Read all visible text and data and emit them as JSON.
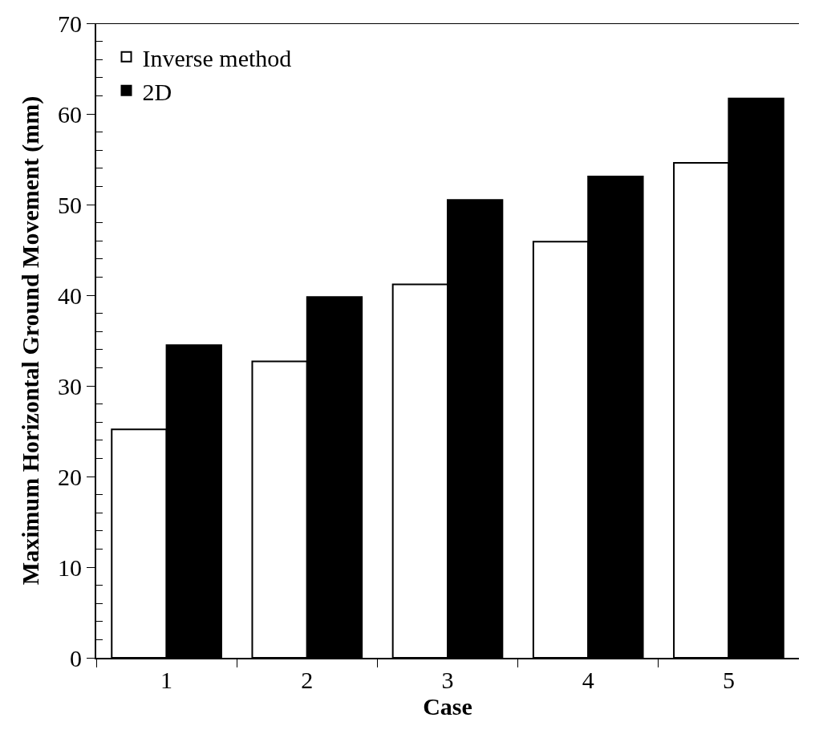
{
  "chart_data": {
    "type": "bar",
    "xlabel": "Case",
    "ylabel": "Maximum Horizontal Ground Movement (mm)",
    "categories": [
      "1",
      "2",
      "3",
      "4",
      "5"
    ],
    "series": [
      {
        "name": "Inverse method",
        "color": "#ffffff",
        "values": [
          25.2,
          32.7,
          41.2,
          45.9,
          54.6
        ]
      },
      {
        "name": "2D",
        "color": "#000000",
        "values": [
          34.5,
          39.8,
          50.5,
          53.1,
          61.7
        ]
      }
    ],
    "ylim": [
      0,
      70
    ],
    "yticks": [
      0,
      {
        "value": 2,
        "label": null
      },
      {
        "value": 4,
        "label": null
      },
      {
        "value": 6,
        "label": null
      },
      {
        "value": 8,
        "label": null
      },
      10,
      {
        "value": 12,
        "label": null
      },
      {
        "value": 14,
        "label": null
      },
      {
        "value": 16,
        "label": null
      },
      {
        "value": 18,
        "label": null
      },
      20,
      {
        "value": 22,
        "label": null
      },
      {
        "value": 24,
        "label": null
      },
      {
        "value": 26,
        "label": null
      },
      {
        "value": 28,
        "label": null
      },
      30,
      {
        "value": 32,
        "label": null
      },
      {
        "value": 34,
        "label": null
      },
      {
        "value": 36,
        "label": null
      },
      {
        "value": 38,
        "label": null
      },
      40,
      {
        "value": 42,
        "label": null
      },
      {
        "value": 44,
        "label": null
      },
      {
        "value": 46,
        "label": null
      },
      {
        "value": 48,
        "label": null
      },
      50,
      {
        "value": 52,
        "label": null
      },
      {
        "value": 54,
        "label": null
      },
      {
        "value": 56,
        "label": null
      },
      {
        "value": 58,
        "label": null
      },
      60,
      {
        "value": 62,
        "label": null
      },
      {
        "value": 64,
        "label": null
      },
      {
        "value": 66,
        "label": null
      },
      {
        "value": 68,
        "label": null
      },
      70
    ],
    "legend": "top left"
  }
}
